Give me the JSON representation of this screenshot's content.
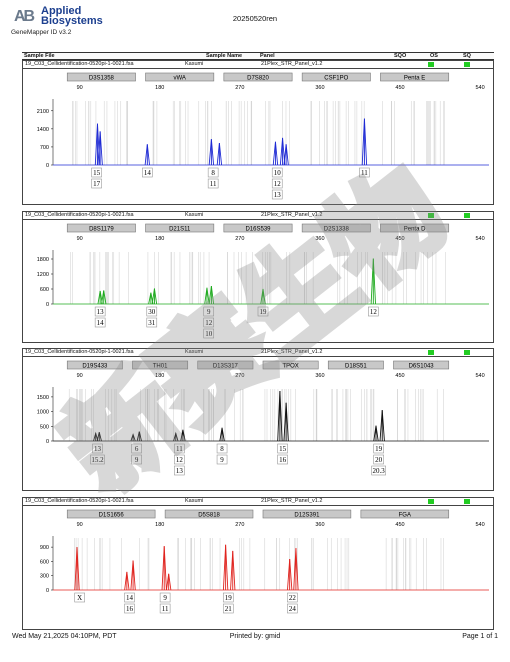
{
  "header": {
    "logo_mark": "AB",
    "logo_line1": "Applied",
    "logo_line2": "Biosystems",
    "software": "GeneMapper ID v3.2",
    "report_title": "20250520ren"
  },
  "columns": {
    "sample_file": "Sample File",
    "sample_name": "Sample Name",
    "panel": "Panel",
    "sqo": "SQO",
    "os": "OS",
    "sq": "SQ"
  },
  "footer": {
    "date": "Wed May 21,2025 04:10PM, PDT",
    "printed_by": "Printed by: gmid",
    "page": "Page 1 of 1"
  },
  "watermark_text": "新赛生物",
  "chart_data": [
    {
      "type": "line",
      "dye": "blue",
      "color": "#1f2bd4",
      "sample_file": "19_C03_Cellidentification-0520pi-1-0021.fsa",
      "sample_name": "Kasumi",
      "panel": "21Plex_STR_Panel_v1.2",
      "x_ticks": [
        90,
        180,
        270,
        360,
        450,
        540
      ],
      "y_ticks": [
        0,
        700,
        1400,
        2100
      ],
      "ylim": [
        0,
        2400
      ],
      "markers": [
        "D3S1358",
        "vWA",
        "D7S820",
        "CSF1PO",
        "Penta E"
      ],
      "peaks": [
        {
          "x": 110,
          "y": 1600
        },
        {
          "x": 113,
          "y": 1300
        },
        {
          "x": 166,
          "y": 800
        },
        {
          "x": 238,
          "y": 1000
        },
        {
          "x": 247,
          "y": 850
        },
        {
          "x": 310,
          "y": 900
        },
        {
          "x": 318,
          "y": 1050
        },
        {
          "x": 322,
          "y": 800
        },
        {
          "x": 410,
          "y": 1800
        }
      ],
      "allele_calls": [
        {
          "x": 109,
          "labels": [
            "15",
            "17"
          ]
        },
        {
          "x": 166,
          "labels": [
            "14"
          ]
        },
        {
          "x": 240,
          "labels": [
            "8",
            "11"
          ]
        },
        {
          "x": 312,
          "labels": [
            "10",
            "12",
            "13"
          ]
        },
        {
          "x": 410,
          "labels": [
            "11"
          ]
        }
      ]
    },
    {
      "type": "line",
      "dye": "green",
      "color": "#1faa1f",
      "sample_file": "19_C03_Cellidentification-0520pi-1-0021.fsa",
      "sample_name": "Kasumi",
      "panel": "21Plex_STR_Panel_v1.2",
      "x_ticks": [
        90,
        180,
        270,
        360,
        450,
        540
      ],
      "y_ticks": [
        0,
        600,
        1200,
        1800
      ],
      "ylim": [
        0,
        2000
      ],
      "markers": [
        "D8S1179",
        "D21S11",
        "D16S539",
        "D2S1338",
        "Penta D"
      ],
      "peaks": [
        {
          "x": 113,
          "y": 520
        },
        {
          "x": 117,
          "y": 540
        },
        {
          "x": 170,
          "y": 450
        },
        {
          "x": 174,
          "y": 620
        },
        {
          "x": 233,
          "y": 650
        },
        {
          "x": 238,
          "y": 720
        },
        {
          "x": 296,
          "y": 600
        },
        {
          "x": 420,
          "y": 1820
        }
      ],
      "allele_calls": [
        {
          "x": 113,
          "labels": [
            "13",
            "14"
          ]
        },
        {
          "x": 171,
          "labels": [
            "30",
            "31"
          ]
        },
        {
          "x": 235,
          "labels": [
            "9",
            "12",
            "10"
          ]
        },
        {
          "x": 296,
          "labels": [
            "19"
          ]
        },
        {
          "x": 420,
          "labels": [
            "12"
          ]
        }
      ]
    },
    {
      "type": "line",
      "dye": "black",
      "color": "#111111",
      "sample_file": "19_C03_Cellidentification-0520pi-1-0021.fsa",
      "sample_name": "Kasumi",
      "panel": "21Plex_STR_Panel_v1.2",
      "x_ticks": [
        90,
        180,
        270,
        360,
        450,
        540
      ],
      "y_ticks": [
        0,
        500,
        1000,
        1500
      ],
      "ylim": [
        0,
        1700
      ],
      "markers": [
        "D19S433",
        "TH01",
        "D13S317",
        "TPOX",
        "D18S51",
        "D6S1043"
      ],
      "peaks": [
        {
          "x": 108,
          "y": 260
        },
        {
          "x": 112,
          "y": 300
        },
        {
          "x": 150,
          "y": 220
        },
        {
          "x": 157,
          "y": 320
        },
        {
          "x": 198,
          "y": 260
        },
        {
          "x": 206,
          "y": 380
        },
        {
          "x": 250,
          "y": 450
        },
        {
          "x": 315,
          "y": 1800
        },
        {
          "x": 322,
          "y": 1300
        },
        {
          "x": 423,
          "y": 520
        },
        {
          "x": 430,
          "y": 1050
        }
      ],
      "allele_calls": [
        {
          "x": 110,
          "labels": [
            "13",
            "15.2"
          ]
        },
        {
          "x": 154,
          "labels": [
            "6",
            "9"
          ]
        },
        {
          "x": 202,
          "labels": [
            "11",
            "12",
            "13"
          ]
        },
        {
          "x": 250,
          "labels": [
            "8",
            "9"
          ]
        },
        {
          "x": 318,
          "labels": [
            "15",
            "16"
          ]
        },
        {
          "x": 426,
          "labels": [
            "19",
            "20",
            "20.3"
          ]
        }
      ]
    },
    {
      "type": "line",
      "dye": "red",
      "color": "#e0241f",
      "sample_file": "19_C03_Cellidentification-0520pi-1-0021.fsa",
      "sample_name": "Kasumi",
      "panel": "21Plex_STR_Panel_v1.2",
      "x_ticks": [
        90,
        180,
        270,
        360,
        450,
        540
      ],
      "y_ticks": [
        0,
        300,
        600,
        900
      ],
      "ylim": [
        0,
        1050
      ],
      "markers": [
        "D1S1656",
        "D5S818",
        "D12S391",
        "FGA"
      ],
      "peaks": [
        {
          "x": 87,
          "y": 900
        },
        {
          "x": 143,
          "y": 380
        },
        {
          "x": 150,
          "y": 620
        },
        {
          "x": 185,
          "y": 920
        },
        {
          "x": 190,
          "y": 340
        },
        {
          "x": 254,
          "y": 950
        },
        {
          "x": 262,
          "y": 820
        },
        {
          "x": 326,
          "y": 650
        },
        {
          "x": 333,
          "y": 880
        }
      ],
      "allele_calls": [
        {
          "x": 90,
          "labels": [
            "X"
          ]
        },
        {
          "x": 146,
          "labels": [
            "14",
            "16"
          ]
        },
        {
          "x": 186,
          "labels": [
            "9",
            "11"
          ]
        },
        {
          "x": 257,
          "labels": [
            "19",
            "21"
          ]
        },
        {
          "x": 329,
          "labels": [
            "22",
            "24"
          ]
        }
      ]
    }
  ]
}
